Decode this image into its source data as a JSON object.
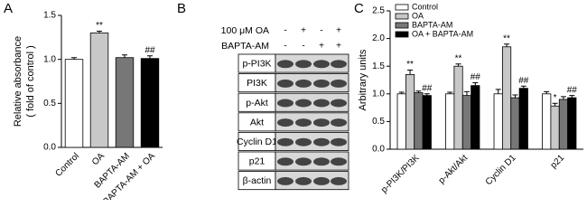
{
  "chart_data": [
    {
      "type": "bar",
      "panel": "A",
      "ylabel": [
        "Relative absorbance",
        "( fold of control )"
      ],
      "categories": [
        "Control",
        "OA",
        "BAPTA-AM",
        "BAPTA-AM + OA"
      ],
      "values": [
        1.0,
        1.3,
        1.02,
        1.01
      ],
      "errors": [
        0.02,
        0.02,
        0.03,
        0.03
      ],
      "colors": [
        "#ffffff",
        "#c8c8c8",
        "#777777",
        "#000000"
      ],
      "annotations": [
        {
          "text": "**",
          "category": "OA"
        },
        {
          "text": "##",
          "category": "BAPTA-AM + OA"
        }
      ],
      "ylim": [
        0,
        1.5
      ],
      "yticks": [
        {
          "value": 0,
          "label": "0.0"
        },
        {
          "value": 0.5,
          "label": "0.5"
        },
        {
          "value": 1,
          "label": "1.0"
        },
        {
          "value": 1.5,
          "label": "1.5"
        }
      ]
    },
    {
      "type": "grouped-bar",
      "panel": "C",
      "ylabel": "Arbitrary units",
      "categories": [
        "p-PI3K/PI3K",
        "p-Akt/Akt",
        "Cyclin D1",
        "p21"
      ],
      "series": [
        {
          "name": "Control",
          "color": "#ffffff",
          "values": [
            1.0,
            1.0,
            1.0,
            1.0
          ],
          "errors": [
            0.03,
            0.03,
            0.08,
            0.04
          ]
        },
        {
          "name": "OA",
          "color": "#c8c8c8",
          "values": [
            1.35,
            1.5,
            1.85,
            0.78
          ],
          "errors": [
            0.08,
            0.04,
            0.05,
            0.05
          ]
        },
        {
          "name": "BAPTA-AM",
          "color": "#777777",
          "values": [
            1.02,
            0.97,
            0.93,
            0.9
          ],
          "errors": [
            0.03,
            0.07,
            0.05,
            0.05
          ]
        },
        {
          "name": "OA + BAPTA-AM",
          "color": "#000000",
          "values": [
            0.97,
            1.15,
            1.1,
            0.93
          ],
          "errors": [
            0.03,
            0.05,
            0.04,
            0.04
          ]
        }
      ],
      "annotations": [
        {
          "text": "**",
          "series": "OA",
          "category": "p-PI3K/PI3K"
        },
        {
          "text": "**",
          "series": "OA",
          "category": "p-Akt/Akt"
        },
        {
          "text": "**",
          "series": "OA",
          "category": "Cyclin D1"
        },
        {
          "text": "*",
          "series": "OA",
          "category": "p21"
        },
        {
          "text": "##",
          "series": "OA + BAPTA-AM",
          "category": "p-PI3K/PI3K"
        },
        {
          "text": "##",
          "series": "OA + BAPTA-AM",
          "category": "p-Akt/Akt"
        },
        {
          "text": "##",
          "series": "OA + BAPTA-AM",
          "category": "Cyclin D1"
        },
        {
          "text": "##",
          "series": "OA + BAPTA-AM",
          "category": "p21"
        }
      ],
      "legend": "upper left",
      "ylim": [
        0,
        2.5
      ],
      "yticks": [
        {
          "value": 0,
          "label": "0.0"
        },
        {
          "value": 0.5,
          "label": "0.5"
        },
        {
          "value": 1,
          "label": "1.0"
        },
        {
          "value": 1.5,
          "label": "1.5"
        },
        {
          "value": 2,
          "label": "2.0"
        },
        {
          "value": 2.5,
          "label": "2.5"
        }
      ]
    }
  ],
  "blot": {
    "panel": "B",
    "treatments": [
      {
        "label": "100 μM  OA",
        "signs": [
          "-",
          "+",
          "-",
          "+"
        ]
      },
      {
        "label": "BAPTA-AM",
        "signs": [
          "-",
          "-",
          "+",
          "+"
        ]
      }
    ],
    "rows": [
      "p-PI3K",
      "PI3K",
      "p-Akt",
      "Akt",
      "Cyclin D1",
      "p21",
      "β-actin"
    ]
  }
}
